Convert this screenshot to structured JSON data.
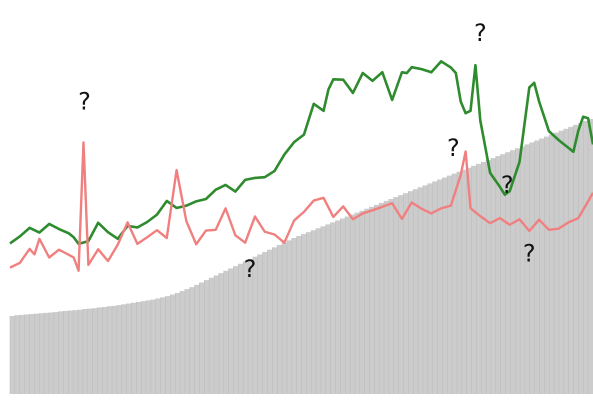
{
  "chart_data": {
    "type": "line",
    "title": "",
    "xlabel": "",
    "ylabel": "",
    "grid": false,
    "legend": "none",
    "x": [
      0,
      1,
      2,
      3,
      4,
      5,
      6,
      7,
      8,
      9,
      10,
      11,
      12,
      13,
      14,
      15,
      16,
      17,
      18,
      19,
      20,
      21,
      22,
      23,
      24,
      25,
      26,
      27,
      28,
      29,
      30,
      31,
      32,
      33,
      34,
      35,
      36,
      37,
      38,
      39,
      40,
      41,
      42,
      43,
      44,
      45,
      46,
      47,
      48,
      49,
      50,
      51,
      52,
      53,
      54,
      55,
      56,
      57,
      58,
      59,
      60,
      61,
      62,
      63,
      64,
      65,
      66,
      67,
      68,
      69,
      70,
      71,
      72,
      73,
      74,
      75,
      76,
      77,
      78,
      79,
      80,
      81,
      82,
      83,
      84,
      85,
      86,
      87,
      88,
      89,
      90,
      91,
      92,
      93,
      94,
      95,
      96,
      97,
      98,
      99,
      100,
      101,
      102,
      103,
      104,
      105,
      106,
      107,
      108,
      109,
      110,
      111,
      112,
      113,
      114,
      115,
      116,
      117,
      118,
      119
    ],
    "ylim": [
      0,
      100
    ],
    "series": [
      {
        "kind": "bars",
        "color": "#cccccc",
        "values": [
          20.0,
          20.2,
          20.3,
          20.4,
          20.5,
          20.6,
          20.7,
          20.8,
          20.9,
          21.0,
          21.2,
          21.3,
          21.4,
          21.5,
          21.6,
          21.8,
          21.9,
          22.0,
          22.2,
          22.3,
          22.5,
          22.6,
          22.8,
          23.0,
          23.2,
          23.4,
          23.6,
          23.8,
          24.0,
          24.2,
          24.5,
          24.8,
          25.1,
          25.5,
          25.9,
          26.4,
          26.9,
          27.4,
          28.0,
          28.6,
          29.2,
          29.8,
          30.4,
          31.0,
          31.6,
          32.2,
          32.8,
          33.4,
          34.0,
          34.6,
          35.2,
          35.8,
          36.4,
          37.0,
          37.6,
          38.2,
          38.8,
          39.4,
          40.0,
          40.5,
          41.0,
          41.5,
          42.0,
          42.5,
          43.0,
          43.5,
          44.0,
          44.5,
          45.0,
          45.5,
          46.0,
          46.5,
          47.0,
          47.5,
          48.0,
          48.5,
          49.0,
          49.5,
          50.0,
          50.5,
          51.0,
          51.5,
          52.0,
          52.5,
          53.0,
          53.5,
          54.0,
          54.5,
          55.0,
          55.5,
          56.0,
          56.5,
          57.0,
          57.5,
          58.0,
          58.5,
          59.0,
          59.5,
          60.0,
          60.5,
          61.0,
          61.5,
          62.0,
          62.5,
          63.0,
          63.5,
          64.0,
          64.5,
          65.0,
          65.5,
          66.0,
          66.5,
          67.0,
          67.5,
          68.0,
          68.5,
          69.0,
          69.5,
          70.0,
          70.5
        ]
      },
      {
        "kind": "line",
        "color": "#2e8b2e",
        "values": [
          [
            0,
            38.6
          ],
          [
            2,
            40.4
          ],
          [
            4,
            42.6
          ],
          [
            6,
            41.4
          ],
          [
            8,
            43.6
          ],
          [
            10,
            42.3
          ],
          [
            12,
            41.2
          ],
          [
            13,
            40.2
          ],
          [
            14,
            38.5
          ],
          [
            16,
            39.2
          ],
          [
            18,
            43.9
          ],
          [
            20,
            41.5
          ],
          [
            22,
            39.8
          ],
          [
            24,
            43.1
          ],
          [
            26,
            42.7
          ],
          [
            28,
            44.1
          ],
          [
            30,
            46.0
          ],
          [
            32,
            49.5
          ],
          [
            34,
            47.7
          ],
          [
            36,
            48.3
          ],
          [
            38,
            49.4
          ],
          [
            40,
            50.0
          ],
          [
            42,
            52.4
          ],
          [
            44,
            53.6
          ],
          [
            46,
            51.9
          ],
          [
            48,
            54.9
          ],
          [
            50,
            55.4
          ],
          [
            52,
            55.6
          ],
          [
            54,
            57.2
          ],
          [
            56,
            61.4
          ],
          [
            58,
            64.6
          ],
          [
            60,
            66.5
          ],
          [
            62,
            74.4
          ],
          [
            64,
            72.6
          ],
          [
            65,
            78.1
          ],
          [
            66,
            80.7
          ],
          [
            68,
            80.6
          ],
          [
            70,
            77.2
          ],
          [
            72,
            82.3
          ],
          [
            74,
            80.3
          ],
          [
            76,
            82.5
          ],
          [
            78,
            75.4
          ],
          [
            80,
            82.5
          ],
          [
            81,
            82.3
          ],
          [
            82,
            83.8
          ],
          [
            84,
            83.3
          ],
          [
            86,
            82.5
          ],
          [
            88,
            85.3
          ],
          [
            90,
            83.7
          ],
          [
            91,
            82.3
          ],
          [
            92,
            75.0
          ],
          [
            93,
            72.0
          ],
          [
            94,
            72.6
          ],
          [
            95,
            84.3
          ],
          [
            96,
            70.1
          ],
          [
            98,
            56.7
          ],
          [
            100,
            53.1
          ],
          [
            101,
            51.1
          ],
          [
            102,
            52.0
          ],
          [
            104,
            59.5
          ],
          [
            106,
            78.6
          ],
          [
            107,
            79.8
          ],
          [
            108,
            75.0
          ],
          [
            110,
            67.4
          ],
          [
            112,
            65.1
          ],
          [
            114,
            63.1
          ],
          [
            115,
            62.1
          ],
          [
            116,
            67.5
          ],
          [
            117,
            71.1
          ],
          [
            118,
            70.7
          ],
          [
            119,
            64.0
          ]
        ]
      },
      {
        "kind": "line",
        "color": "#f08080",
        "values": [
          [
            0,
            32.4
          ],
          [
            2,
            33.6
          ],
          [
            4,
            37.2
          ],
          [
            5,
            35.8
          ],
          [
            6,
            39.8
          ],
          [
            8,
            35.0
          ],
          [
            10,
            37.0
          ],
          [
            12,
            35.7
          ],
          [
            13,
            35.0
          ],
          [
            14,
            31.6
          ],
          [
            15,
            64.5
          ],
          [
            16,
            33.1
          ],
          [
            18,
            37.1
          ],
          [
            20,
            34.1
          ],
          [
            22,
            38.3
          ],
          [
            24,
            44.0
          ],
          [
            26,
            38.5
          ],
          [
            28,
            40.2
          ],
          [
            30,
            42.0
          ],
          [
            32,
            40.0
          ],
          [
            34,
            57.4
          ],
          [
            36,
            44.3
          ],
          [
            38,
            38.4
          ],
          [
            40,
            41.9
          ],
          [
            42,
            42.1
          ],
          [
            44,
            47.6
          ],
          [
            46,
            40.7
          ],
          [
            48,
            38.8
          ],
          [
            50,
            45.5
          ],
          [
            52,
            41.6
          ],
          [
            54,
            40.9
          ],
          [
            56,
            38.8
          ],
          [
            58,
            44.5
          ],
          [
            60,
            46.7
          ],
          [
            62,
            49.6
          ],
          [
            64,
            50.3
          ],
          [
            66,
            45.4
          ],
          [
            68,
            48.1
          ],
          [
            70,
            44.8
          ],
          [
            72,
            46.3
          ],
          [
            74,
            47.1
          ],
          [
            76,
            48.0
          ],
          [
            78,
            48.9
          ],
          [
            80,
            44.9
          ],
          [
            82,
            49.1
          ],
          [
            84,
            47.5
          ],
          [
            86,
            46.3
          ],
          [
            88,
            47.6
          ],
          [
            90,
            48.3
          ],
          [
            92,
            56.2
          ],
          [
            93,
            62.2
          ],
          [
            94,
            47.6
          ],
          [
            96,
            45.6
          ],
          [
            98,
            43.8
          ],
          [
            100,
            45.1
          ],
          [
            102,
            43.4
          ],
          [
            104,
            44.8
          ],
          [
            106,
            41.8
          ],
          [
            108,
            44.7
          ],
          [
            110,
            42.1
          ],
          [
            112,
            42.4
          ],
          [
            114,
            44.0
          ],
          [
            116,
            45.1
          ],
          [
            118,
            49.4
          ],
          [
            119,
            51.6
          ]
        ]
      }
    ],
    "annotations": [
      {
        "text": "?",
        "x": 15.2,
        "y": 73.0
      },
      {
        "text": "?",
        "x": 49.0,
        "y": 30.0
      },
      {
        "text": "?",
        "x": 90.5,
        "y": 61.0
      },
      {
        "text": "?",
        "x": 96.0,
        "y": 90.5
      },
      {
        "text": "?",
        "x": 101.5,
        "y": 51.5
      },
      {
        "text": "?",
        "x": 106.0,
        "y": 34.0
      }
    ]
  }
}
